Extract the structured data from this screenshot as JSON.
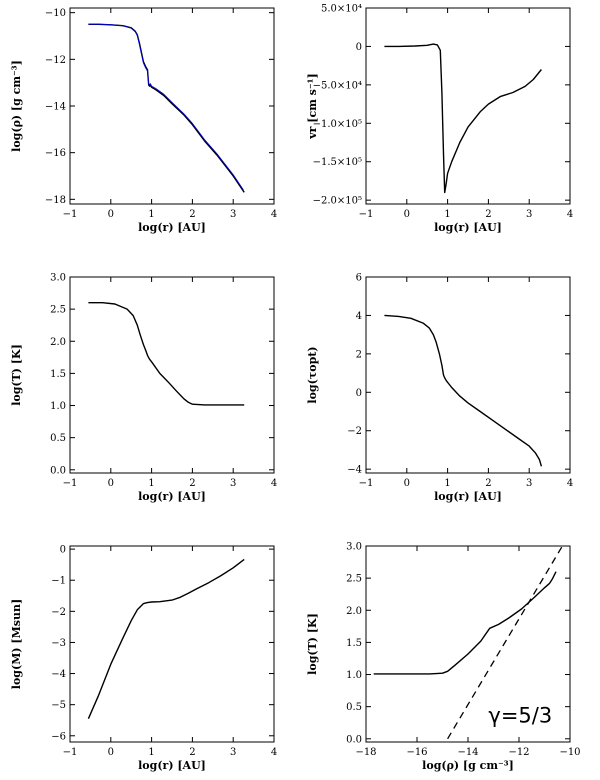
{
  "chart_data": [
    {
      "type": "line",
      "xlabel": "log(r) [AU]",
      "ylabel": "log(ρ) [g cm⁻³]",
      "xlim": [
        -1,
        4
      ],
      "ylim": [
        -18.2,
        -9.8
      ],
      "xticks": [
        -1,
        0,
        1,
        2,
        3,
        4
      ],
      "xtick_labels": [
        "−1",
        "0",
        "1",
        "2",
        "3",
        "4"
      ],
      "yticks": [
        -18,
        -16,
        -14,
        -12,
        -10
      ],
      "ytick_labels": [
        "−18",
        "−16",
        "−14",
        "−12",
        "−10"
      ],
      "series": [
        {
          "color": "#000000",
          "x": [
            -0.55,
            -0.3,
            0.0,
            0.3,
            0.5,
            0.6,
            0.65,
            0.7,
            0.75,
            0.8,
            0.85,
            0.9,
            0.93,
            0.95,
            0.97,
            1.0,
            1.1,
            1.3,
            1.5,
            1.8,
            2.0,
            2.3,
            2.6,
            3.0,
            3.27
          ],
          "y": [
            -10.5,
            -10.5,
            -10.52,
            -10.56,
            -10.65,
            -10.8,
            -10.95,
            -11.3,
            -11.7,
            -12.1,
            -12.3,
            -12.45,
            -13.1,
            -13.15,
            -13.1,
            -13.2,
            -13.3,
            -13.55,
            -13.9,
            -14.4,
            -14.8,
            -15.5,
            -16.1,
            -17.0,
            -17.7
          ]
        },
        {
          "color": "#0000cc",
          "x": [
            -0.55,
            -0.3,
            0.0,
            0.3,
            0.5,
            0.6,
            0.65,
            0.7,
            0.75,
            0.8,
            0.85,
            0.9,
            0.93,
            0.95,
            0.97,
            1.0,
            1.1,
            1.3,
            1.5,
            1.8,
            2.0,
            2.3,
            2.6,
            3.0,
            3.25
          ],
          "y": [
            -10.5,
            -10.5,
            -10.52,
            -10.56,
            -10.66,
            -10.82,
            -10.98,
            -11.35,
            -11.75,
            -12.15,
            -12.35,
            -12.5,
            -13.05,
            -13.1,
            -13.05,
            -13.15,
            -13.25,
            -13.5,
            -13.85,
            -14.35,
            -14.75,
            -15.45,
            -16.05,
            -16.95,
            -17.6
          ]
        }
      ],
      "grid": false
    },
    {
      "type": "line",
      "xlabel": "log(r) [AU]",
      "ylabel": "vr [cm s⁻¹]",
      "xlim": [
        -1,
        4
      ],
      "ylim": [
        -205000,
        50000
      ],
      "xticks": [
        -1,
        0,
        1,
        2,
        3,
        4
      ],
      "xtick_labels": [
        "−1",
        "0",
        "1",
        "2",
        "3",
        "4"
      ],
      "yticks": [
        -200000,
        -150000,
        -100000,
        -50000,
        0,
        50000
      ],
      "ytick_labels": [
        "−2.0×10⁵",
        "−1.5×10⁵",
        "−1.0×10⁵",
        "−5.0×10⁴",
        "0",
        "5.0×10⁴"
      ],
      "series": [
        {
          "color": "#000000",
          "x": [
            -0.55,
            -0.2,
            0.2,
            0.5,
            0.65,
            0.75,
            0.82,
            0.86,
            0.9,
            0.93,
            0.96,
            1.0,
            1.1,
            1.3,
            1.5,
            1.8,
            2.0,
            2.3,
            2.6,
            2.9,
            3.1,
            3.3
          ],
          "y": [
            0,
            0,
            500,
            1500,
            3000,
            2000,
            -5000,
            -60000,
            -140000,
            -190000,
            -180000,
            -165000,
            -150000,
            -125000,
            -105000,
            -85000,
            -75000,
            -65000,
            -60000,
            -52000,
            -43000,
            -30000
          ]
        }
      ],
      "grid": false
    },
    {
      "type": "line",
      "xlabel": "log(r) [AU]",
      "ylabel": "log(T) [K]",
      "xlim": [
        -1,
        4
      ],
      "ylim": [
        -0.05,
        3.0
      ],
      "xticks": [
        -1,
        0,
        1,
        2,
        3,
        4
      ],
      "xtick_labels": [
        "−1",
        "0",
        "1",
        "2",
        "3",
        "4"
      ],
      "yticks": [
        0.0,
        0.5,
        1.0,
        1.5,
        2.0,
        2.5,
        3.0
      ],
      "ytick_labels": [
        "0.0",
        "0.5",
        "1.0",
        "1.5",
        "2.0",
        "2.5",
        "3.0"
      ],
      "series": [
        {
          "color": "#000000",
          "x": [
            -0.55,
            -0.2,
            0.1,
            0.4,
            0.55,
            0.65,
            0.72,
            0.8,
            0.86,
            0.9,
            0.95,
            1.0,
            1.2,
            1.4,
            1.6,
            1.8,
            1.9,
            2.0,
            2.3,
            3.27
          ],
          "y": [
            2.6,
            2.6,
            2.58,
            2.5,
            2.4,
            2.25,
            2.1,
            1.95,
            1.85,
            1.78,
            1.72,
            1.68,
            1.5,
            1.37,
            1.23,
            1.1,
            1.05,
            1.02,
            1.01,
            1.01
          ]
        }
      ],
      "grid": false
    },
    {
      "type": "line",
      "xlabel": "log(r) [AU]",
      "ylabel": "log(τopt)",
      "xlim": [
        -1,
        4
      ],
      "ylim": [
        -4.2,
        6.0
      ],
      "xticks": [
        -1,
        0,
        1,
        2,
        3,
        4
      ],
      "xtick_labels": [
        "−1",
        "0",
        "1",
        "2",
        "3",
        "4"
      ],
      "yticks": [
        -4,
        -2,
        0,
        2,
        4,
        6
      ],
      "ytick_labels": [
        "−4",
        "−2",
        "0",
        "2",
        "4",
        "6"
      ],
      "series": [
        {
          "color": "#000000",
          "x": [
            -0.55,
            -0.2,
            0.1,
            0.4,
            0.55,
            0.65,
            0.72,
            0.8,
            0.86,
            0.9,
            0.93,
            0.97,
            1.1,
            1.3,
            1.5,
            1.8,
            2.1,
            2.4,
            2.7,
            3.0,
            3.15,
            3.25,
            3.3
          ],
          "y": [
            4.0,
            3.95,
            3.85,
            3.6,
            3.35,
            3.0,
            2.6,
            2.0,
            1.4,
            0.9,
            0.75,
            0.6,
            0.25,
            -0.2,
            -0.55,
            -1.0,
            -1.45,
            -1.9,
            -2.35,
            -2.8,
            -3.15,
            -3.5,
            -3.85
          ]
        }
      ],
      "grid": false
    },
    {
      "type": "line",
      "xlabel": "log(r) [AU]",
      "ylabel": "log(M) [Msun]",
      "xlim": [
        -1,
        4
      ],
      "ylim": [
        -6.2,
        0.1
      ],
      "xticks": [
        -1,
        0,
        1,
        2,
        3,
        4
      ],
      "xtick_labels": [
        "−1",
        "0",
        "1",
        "2",
        "3",
        "4"
      ],
      "yticks": [
        -6,
        -5,
        -4,
        -3,
        -2,
        -1,
        0
      ],
      "ytick_labels": [
        "−6",
        "−5",
        "−4",
        "−3",
        "−2",
        "−1",
        "0"
      ],
      "series": [
        {
          "color": "#000000",
          "x": [
            -0.55,
            -0.3,
            0.0,
            0.3,
            0.5,
            0.65,
            0.8,
            0.9,
            1.0,
            1.2,
            1.5,
            1.7,
            1.9,
            2.1,
            2.4,
            2.7,
            3.0,
            3.27
          ],
          "y": [
            -5.45,
            -4.7,
            -3.7,
            -2.85,
            -2.3,
            -1.95,
            -1.75,
            -1.72,
            -1.7,
            -1.69,
            -1.64,
            -1.55,
            -1.42,
            -1.28,
            -1.08,
            -0.85,
            -0.6,
            -0.33
          ]
        }
      ],
      "grid": false
    },
    {
      "type": "line",
      "xlabel": "log(ρ) [g cm⁻³]",
      "ylabel": "log(T) [K]",
      "xlim": [
        -18,
        -10
      ],
      "ylim": [
        -0.05,
        3.0
      ],
      "xticks": [
        -18,
        -16,
        -14,
        -12,
        -10
      ],
      "xtick_labels": [
        "−18",
        "−16",
        "−14",
        "−12",
        "−10"
      ],
      "yticks": [
        0.0,
        0.5,
        1.0,
        1.5,
        2.0,
        2.5,
        3.0
      ],
      "ytick_labels": [
        "0.0",
        "0.5",
        "1.0",
        "1.5",
        "2.0",
        "2.5",
        "3.0"
      ],
      "annotations": [
        {
          "text": "γ=5/3",
          "x": -13.2,
          "y": 0.25
        }
      ],
      "series": [
        {
          "color": "#000000",
          "style": "solid",
          "x": [
            -17.7,
            -16.5,
            -15.5,
            -15.0,
            -14.8,
            -14.5,
            -14.0,
            -13.5,
            -13.15,
            -12.8,
            -12.4,
            -11.9,
            -11.4,
            -11.0,
            -10.8,
            -10.7,
            -10.55
          ],
          "y": [
            1.01,
            1.01,
            1.01,
            1.02,
            1.05,
            1.15,
            1.32,
            1.52,
            1.72,
            1.78,
            1.88,
            2.02,
            2.2,
            2.35,
            2.42,
            2.48,
            2.6
          ]
        },
        {
          "color": "#000000",
          "style": "dashed",
          "x": [
            -14.8,
            -10.3
          ],
          "y": [
            0.0,
            3.0
          ]
        }
      ],
      "grid": false
    }
  ]
}
